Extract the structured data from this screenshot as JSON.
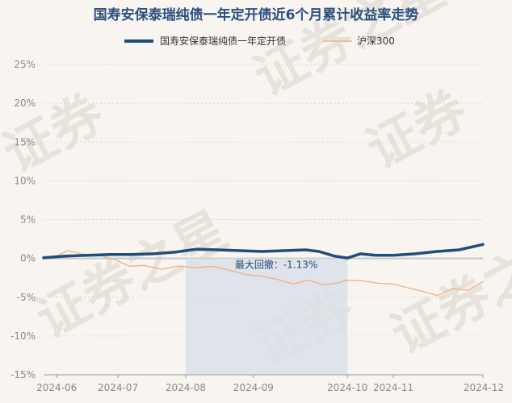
{
  "chart_data": {
    "type": "line",
    "title": "国寿安保泰瑞纯债一年定开债近6个月累计收益率走势",
    "series": [
      {
        "name": "国寿安保泰瑞纯债一年定开债",
        "color": "#1f4e7e",
        "points": [
          [
            "2024-05-28",
            0.1
          ],
          [
            "2024-06-07",
            0.3
          ],
          [
            "2024-06-17",
            0.4
          ],
          [
            "2024-06-27",
            0.5
          ],
          [
            "2024-07-07",
            0.5
          ],
          [
            "2024-07-17",
            0.6
          ],
          [
            "2024-07-27",
            0.8
          ],
          [
            "2024-08-06",
            1.2
          ],
          [
            "2024-08-16",
            1.1
          ],
          [
            "2024-08-26",
            1.0
          ],
          [
            "2024-09-05",
            0.9
          ],
          [
            "2024-09-15",
            1.0
          ],
          [
            "2024-09-25",
            1.1
          ],
          [
            "2024-10-01",
            0.9
          ],
          [
            "2024-10-08",
            0.3
          ],
          [
            "2024-10-14",
            0.05
          ],
          [
            "2024-10-20",
            0.6
          ],
          [
            "2024-10-27",
            0.4
          ],
          [
            "2024-11-04",
            0.4
          ],
          [
            "2024-11-14",
            0.6
          ],
          [
            "2024-11-24",
            0.9
          ],
          [
            "2024-12-04",
            1.1
          ],
          [
            "2024-12-15",
            1.8
          ]
        ]
      },
      {
        "name": "沪深300",
        "color": "#f2b07e",
        "points": [
          [
            "2024-05-28",
            -0.1
          ],
          [
            "2024-06-03",
            0.3
          ],
          [
            "2024-06-08",
            1.0
          ],
          [
            "2024-06-14",
            0.6
          ],
          [
            "2024-06-24",
            0.3
          ],
          [
            "2024-07-01",
            -0.3
          ],
          [
            "2024-07-06",
            -1.0
          ],
          [
            "2024-07-13",
            -0.9
          ],
          [
            "2024-07-21",
            -1.4
          ],
          [
            "2024-07-28",
            -1.0
          ],
          [
            "2024-08-06",
            -1.2
          ],
          [
            "2024-08-13",
            -1.0
          ],
          [
            "2024-08-22",
            -1.6
          ],
          [
            "2024-08-29",
            -2.1
          ],
          [
            "2024-09-05",
            -2.3
          ],
          [
            "2024-09-12",
            -2.7
          ],
          [
            "2024-09-19",
            -3.3
          ],
          [
            "2024-09-26",
            -2.8
          ],
          [
            "2024-10-03",
            -3.4
          ],
          [
            "2024-10-09",
            -3.2
          ],
          [
            "2024-10-14",
            -2.8
          ],
          [
            "2024-10-21",
            -2.9
          ],
          [
            "2024-10-28",
            -3.2
          ],
          [
            "2024-11-04",
            -3.3
          ],
          [
            "2024-11-11",
            -3.8
          ],
          [
            "2024-11-18",
            -4.3
          ],
          [
            "2024-11-24",
            -4.8
          ],
          [
            "2024-12-01",
            -3.9
          ],
          [
            "2024-12-08",
            -4.1
          ],
          [
            "2024-12-15",
            -3.0
          ]
        ]
      }
    ],
    "ylim": [
      -15,
      25
    ],
    "ytick_values": [
      25,
      20,
      15,
      10,
      5,
      0,
      -5,
      -10,
      -15
    ],
    "ytick_labels": [
      "25%",
      "20%",
      "15%",
      "10%",
      "5%",
      "0%",
      "-5%",
      "-10%",
      "-15%"
    ],
    "xlim": [
      "2024-05-28",
      "2024-12-15"
    ],
    "xtick_values": [
      "2024-06-03",
      "2024-07-01",
      "2024-08-01",
      "2024-09-01",
      "2024-10-14",
      "2024-11-04",
      "2024-12-15"
    ],
    "xtick_labels": [
      "2024-06",
      "2024-07",
      "2024-08",
      "2024-09",
      "2024-10",
      "2024-11",
      "2024-12"
    ],
    "drawdown": {
      "label": "最大回撤：-1.13%",
      "start": "2024-08-01",
      "end": "2024-10-14",
      "color": "#d9e1e8"
    },
    "grid": true,
    "legend": "top-center",
    "watermark": "证券之星"
  }
}
